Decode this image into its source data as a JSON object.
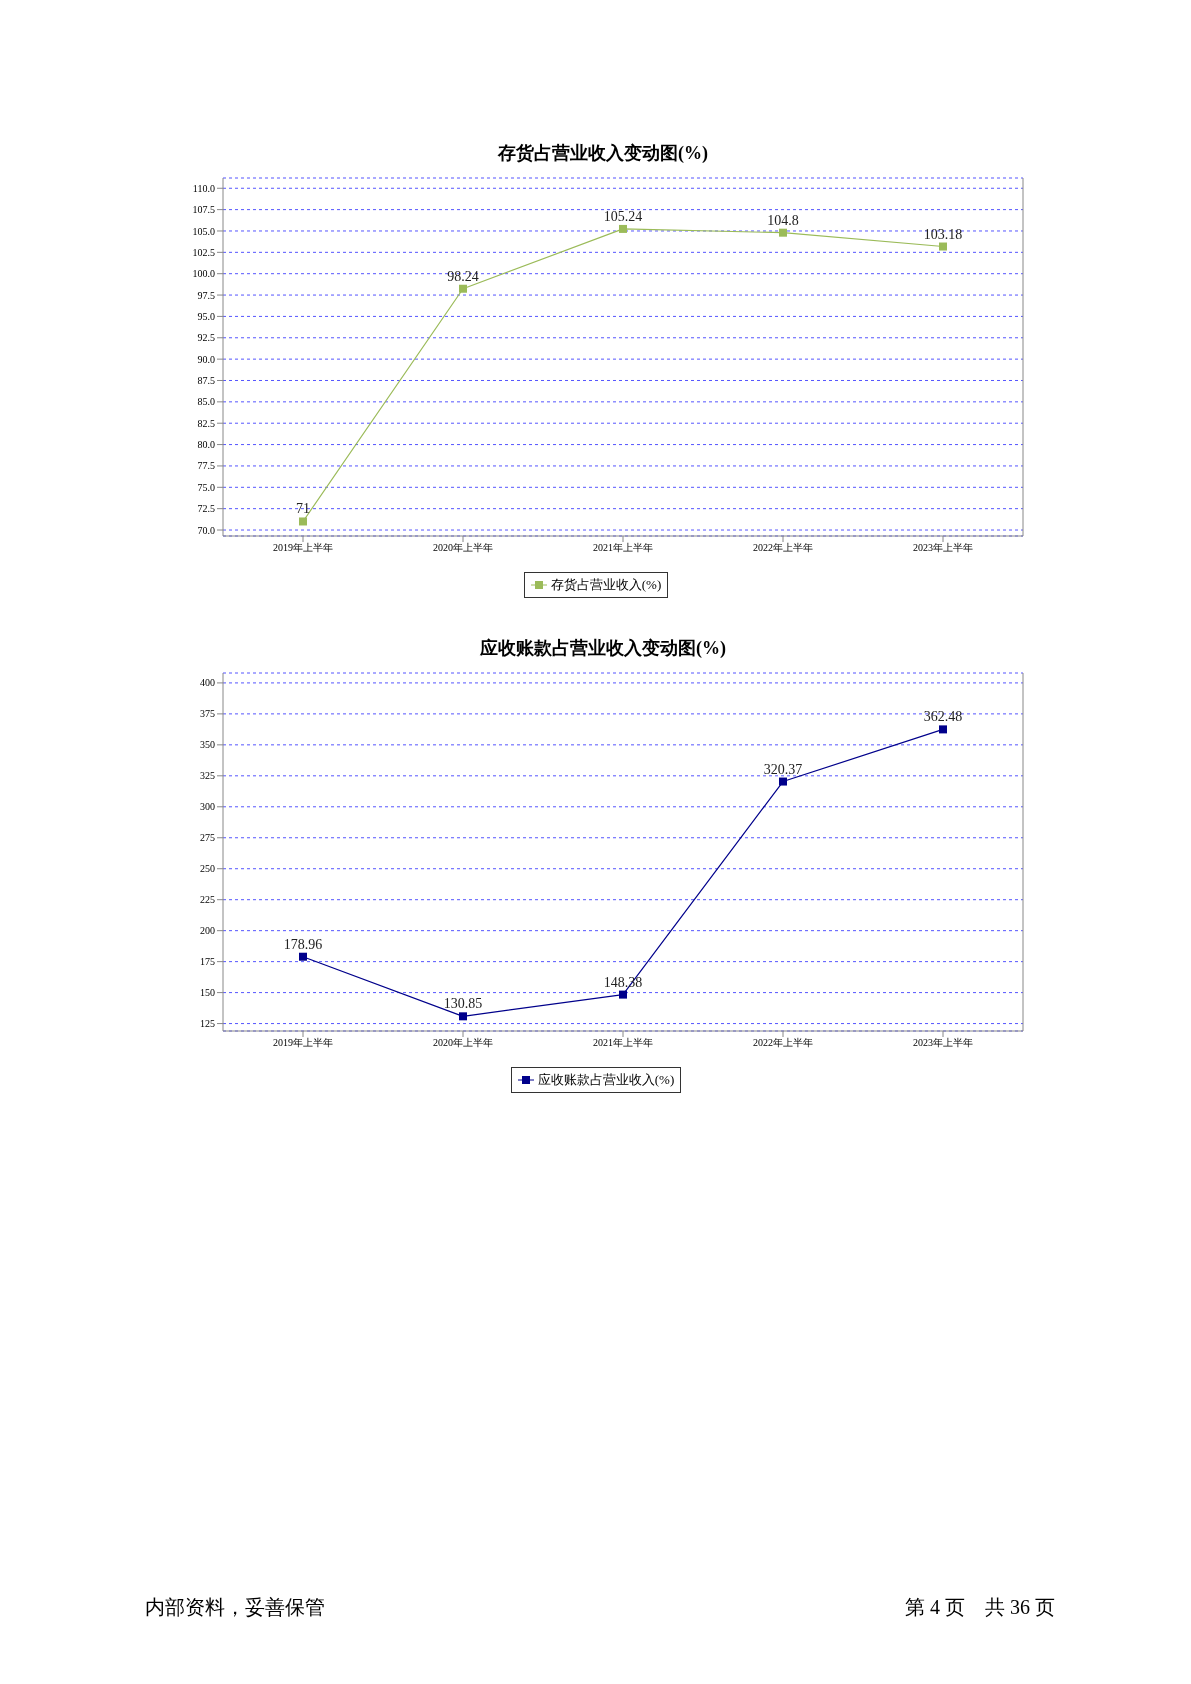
{
  "chart_data": [
    {
      "type": "line",
      "title": "存货占营业收入变动图(%)",
      "categories": [
        "2019年上半年",
        "2020年上半年",
        "2021年上半年",
        "2022年上半年",
        "2023年上半年"
      ],
      "series": [
        {
          "name": "存货占营业收入(%)",
          "color": "#9bbb59",
          "values": [
            71,
            98.24,
            105.24,
            104.8,
            103.18
          ]
        }
      ],
      "ylim": [
        69.3,
        111.2
      ],
      "yticks": [
        {
          "value": 70,
          "label": "70.0"
        },
        {
          "value": 72.5,
          "label": "72.5"
        },
        {
          "value": 75,
          "label": "75.0"
        },
        {
          "value": 77.5,
          "label": "77.5"
        },
        {
          "value": 80,
          "label": "80.0"
        },
        {
          "value": 82.5,
          "label": "82.5"
        },
        {
          "value": 85,
          "label": "85.0"
        },
        {
          "value": 87.5,
          "label": "87.5"
        },
        {
          "value": 90,
          "label": "90.0"
        },
        {
          "value": 92.5,
          "label": "92.5"
        },
        {
          "value": 95,
          "label": "95.0"
        },
        {
          "value": 97.5,
          "label": "97.5"
        },
        {
          "value": 100,
          "label": "100.0"
        },
        {
          "value": 102.5,
          "label": "102.5"
        },
        {
          "value": 105,
          "label": "105.0"
        },
        {
          "value": 107.5,
          "label": "107.5"
        },
        {
          "value": 110,
          "label": "110.0"
        }
      ],
      "grid": "y",
      "legend": "bottom",
      "marker": "square",
      "line_style": "solid",
      "data_labels": true
    },
    {
      "type": "line",
      "title": "应收账款占营业收入变动图(%)",
      "categories": [
        "2019年上半年",
        "2020年上半年",
        "2021年上半年",
        "2022年上半年",
        "2023年上半年"
      ],
      "series": [
        {
          "name": "应收账款占营业收入(%)",
          "color": "#00008b",
          "values": [
            178.96,
            130.85,
            148.38,
            320.37,
            362.48
          ]
        }
      ],
      "ylim": [
        119,
        408
      ],
      "yticks": [
        125,
        150,
        175,
        200,
        225,
        250,
        275,
        300,
        325,
        350,
        375,
        400
      ],
      "grid": "y",
      "legend": "bottom",
      "marker": "square",
      "line_style": "solid",
      "data_labels": true,
      "annotations": [
        "内部资料，妥善保管",
        "第 4 页　共 36 页"
      ]
    }
  ]
}
